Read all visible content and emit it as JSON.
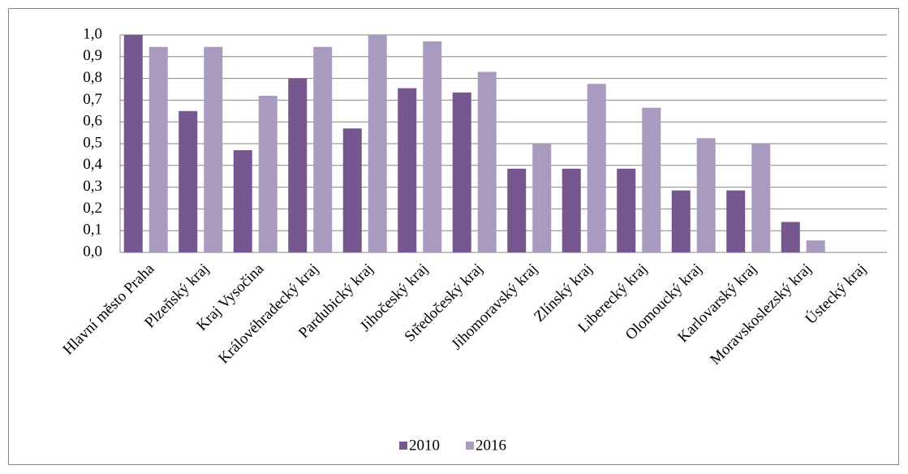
{
  "chart_data": {
    "type": "bar",
    "categories": [
      "Hlavní město Praha",
      "Plzeňský kraj",
      "Kraj Vysočina",
      "Královéhradecký kraj",
      "Pardubický kraj",
      "Jihočeský kraj",
      "Středočeský kraj",
      "Jihomoravský kraj",
      "Zlínský kraj",
      "Liberecký kraj",
      "Olomoucký kraj",
      "Karlovarský kraj",
      "Moravskoslezský kraj",
      "Ústecký kraj"
    ],
    "series": [
      {
        "name": "2010",
        "color": "#76578f",
        "values": [
          1.0,
          0.65,
          0.47,
          0.8,
          0.57,
          0.755,
          0.735,
          0.385,
          0.385,
          0.385,
          0.285,
          0.285,
          0.14,
          0
        ]
      },
      {
        "name": "2016",
        "color": "#a99bc0",
        "values": [
          0.945,
          0.945,
          0.72,
          0.945,
          1.0,
          0.97,
          0.83,
          0.5,
          0.775,
          0.665,
          0.525,
          0.5,
          0.055,
          0
        ]
      }
    ],
    "ylim": [
      0,
      1
    ],
    "yticks": [
      {
        "value": 0,
        "label": "0,0"
      },
      {
        "value": 0.1,
        "label": "0,1"
      },
      {
        "value": 0.2,
        "label": "0,2"
      },
      {
        "value": 0.3,
        "label": "0,3"
      },
      {
        "value": 0.4,
        "label": "0,4"
      },
      {
        "value": 0.5,
        "label": "0,5"
      },
      {
        "value": 0.6,
        "label": "0,6"
      },
      {
        "value": 0.7,
        "label": "0,7"
      },
      {
        "value": 0.8,
        "label": "0,8"
      },
      {
        "value": 0.9,
        "label": "0,9"
      },
      {
        "value": 1,
        "label": "1,0"
      }
    ],
    "grid": true,
    "legend": "bottom"
  }
}
